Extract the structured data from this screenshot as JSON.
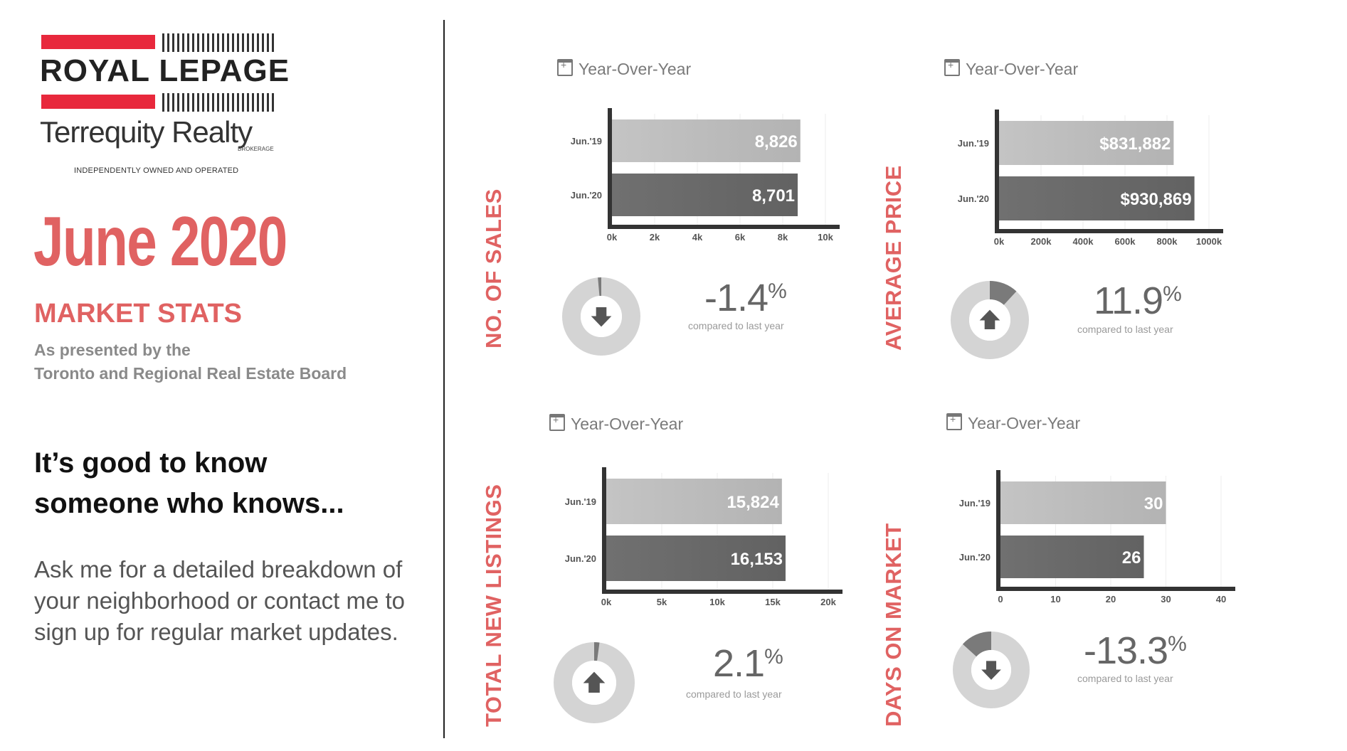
{
  "logo": {
    "brand": "ROYAL LEPAGE",
    "office": "Terrequity Realty",
    "brokerage": "BROKERAGE",
    "tagline": "INDEPENDENTLY OWNED AND OPERATED"
  },
  "header": {
    "month": "June 2020",
    "subtitle": "MARKET STATS",
    "presented_line1": "As presented by the",
    "presented_line2": "Toronto and Regional Real Estate Board"
  },
  "pitch": {
    "line1": "It’s good to know",
    "line2": "someone who knows...",
    "body_line1": "Ask me for a detailed breakdown of",
    "body_line2": "your neighborhood or contact me to",
    "body_line3": "sign up for regular market updates."
  },
  "colors": {
    "accent": "#e06262",
    "bar_2019": "#b3b3b3",
    "bar_2020": "#626262",
    "donut": "#d4d4d4",
    "donut_fill": "#7a7a7a"
  },
  "panels": [
    {
      "section": "NO. OF SALES",
      "period": "Year-Over-Year",
      "change": "-1.4",
      "direction": "down",
      "compare": "compared to last year"
    },
    {
      "section": "AVERAGE PRICE",
      "period": "Year-Over-Year",
      "change": "11.9",
      "direction": "up",
      "compare": "compared to last year"
    },
    {
      "section": "TOTAL NEW LISTINGS",
      "period": "Year-Over-Year",
      "change": "2.1",
      "direction": "up",
      "compare": "compared to last year"
    },
    {
      "section": "DAYS ON MARKET",
      "period": "Year-Over-Year",
      "change": "-13.3",
      "direction": "down",
      "compare": "compared to last year"
    }
  ],
  "chart_data": [
    {
      "type": "bar",
      "orientation": "horizontal",
      "categories": [
        "Jun.'19",
        "Jun.'20"
      ],
      "values": [
        8826,
        8701
      ],
      "value_labels": [
        "8,826",
        "8,701"
      ],
      "xlim": [
        0,
        10000
      ],
      "ticks": [
        "0k",
        "2k",
        "4k",
        "6k",
        "8k",
        "10k"
      ]
    },
    {
      "type": "bar",
      "orientation": "horizontal",
      "categories": [
        "Jun.'19",
        "Jun.'20"
      ],
      "values": [
        831882,
        930869
      ],
      "value_labels": [
        "$831,882",
        "$930,869"
      ],
      "xlim": [
        0,
        1000000
      ],
      "ticks": [
        "0k",
        "200k",
        "400k",
        "600k",
        "800k",
        "1000k"
      ]
    },
    {
      "type": "bar",
      "orientation": "horizontal",
      "categories": [
        "Jun.'19",
        "Jun.'20"
      ],
      "values": [
        15824,
        16153
      ],
      "value_labels": [
        "15,824",
        "16,153"
      ],
      "xlim": [
        0,
        20000
      ],
      "ticks": [
        "0k",
        "5k",
        "10k",
        "15k",
        "20k"
      ]
    },
    {
      "type": "bar",
      "orientation": "horizontal",
      "categories": [
        "Jun.'19",
        "Jun.'20"
      ],
      "values": [
        30,
        26
      ],
      "value_labels": [
        "30",
        "26"
      ],
      "xlim": [
        0,
        40
      ],
      "ticks": [
        "0",
        "10",
        "20",
        "30",
        "40"
      ]
    }
  ]
}
